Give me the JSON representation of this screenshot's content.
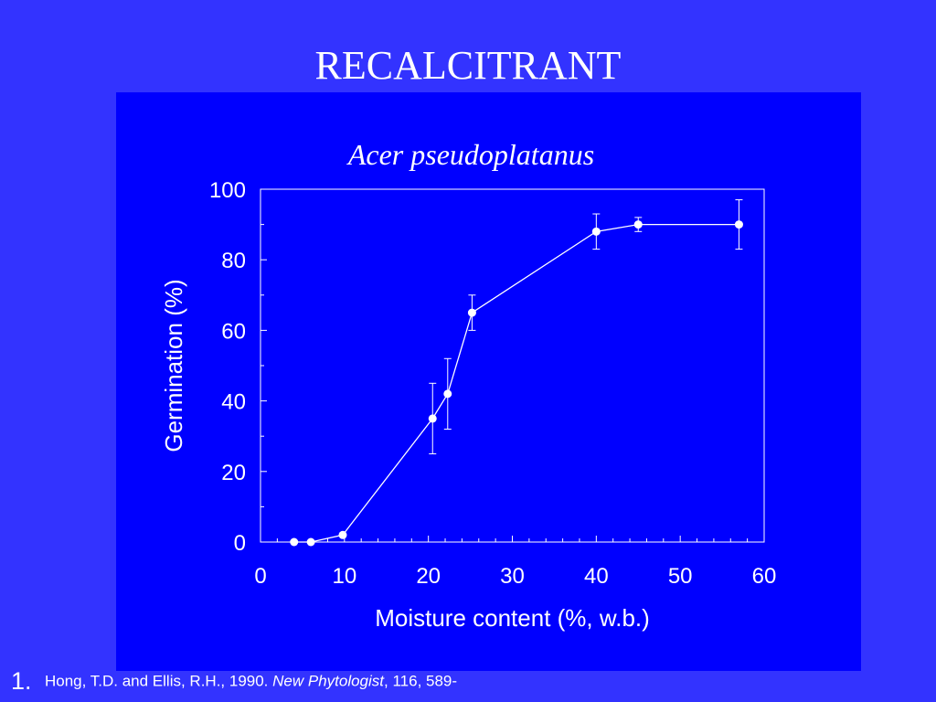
{
  "slide": {
    "title": "RECALCITRANT"
  },
  "reference": {
    "number": "1.",
    "authors": "Hong, T.D. and Ellis, R.H., 1990. ",
    "journal": "New Phytologist",
    "details": ", 116, 589-"
  },
  "colors": {
    "background": "#3333ff",
    "panel": "#0000ff",
    "foreground": "#ffffff"
  },
  "chart_data": {
    "type": "line",
    "title": "Acer pseudoplatanus",
    "xlabel": "Moisture content (%, w.b.)",
    "ylabel": "Germination (%)",
    "xlim": [
      0,
      60
    ],
    "ylim": [
      0,
      100
    ],
    "xticks": [
      0,
      10,
      20,
      30,
      40,
      50,
      60
    ],
    "yticks": [
      0,
      20,
      40,
      60,
      80,
      100
    ],
    "grid": false,
    "series": [
      {
        "points": [
          {
            "x": 4,
            "y": 0
          },
          {
            "x": 6,
            "y": 0
          },
          {
            "x": 9.8,
            "y": 2
          },
          {
            "x": 20.5,
            "y": 35,
            "err_low": 25,
            "err_high": 45
          },
          {
            "x": 22.3,
            "y": 42,
            "err_low": 32,
            "err_high": 52
          },
          {
            "x": 25.2,
            "y": 65,
            "err_low": 60,
            "err_high": 70
          },
          {
            "x": 40,
            "y": 88,
            "err_low": 83,
            "err_high": 93
          },
          {
            "x": 45,
            "y": 90,
            "err_low": 88,
            "err_high": 92
          },
          {
            "x": 57,
            "y": 90,
            "err_low": 83,
            "err_high": 97
          }
        ]
      }
    ]
  }
}
